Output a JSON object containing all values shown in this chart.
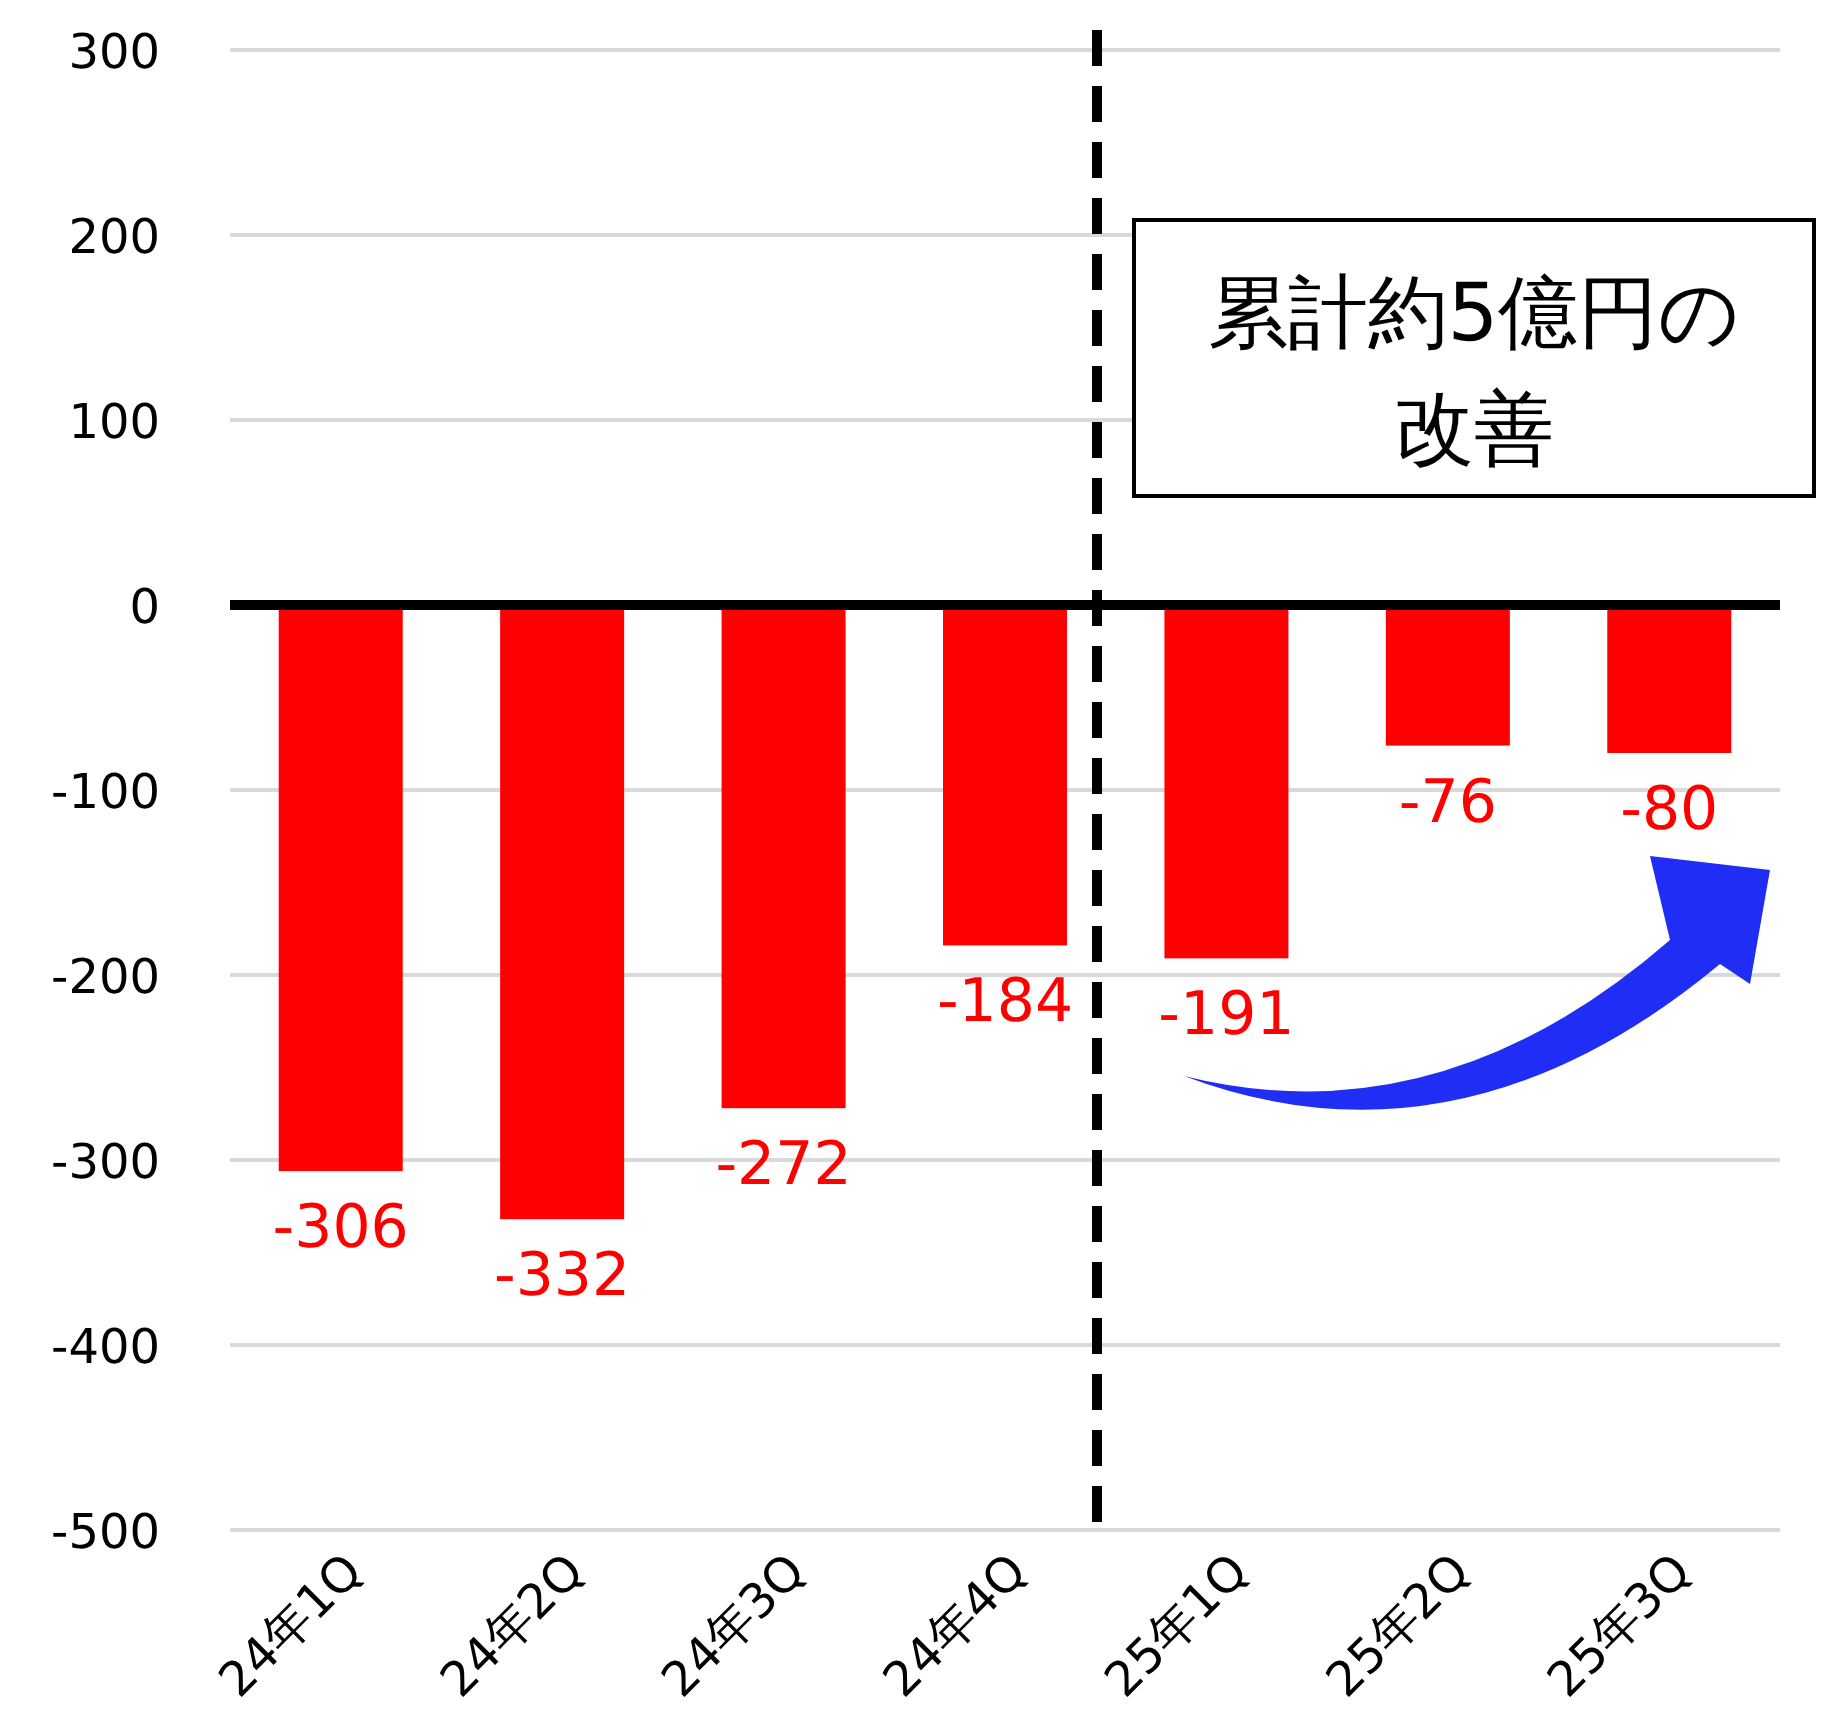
{
  "chart_data": {
    "type": "bar",
    "categories": [
      "24年1Q",
      "24年2Q",
      "24年3Q",
      "24年4Q",
      "25年1Q",
      "25年2Q",
      "25年3Q"
    ],
    "values": [
      -306,
      -332,
      -272,
      -184,
      -191,
      -76,
      -80
    ],
    "color": "#ff0000",
    "ylim": [
      -500,
      300
    ],
    "yticks": [
      -500,
      -400,
      -300,
      -200,
      -100,
      0,
      100,
      200,
      300
    ],
    "grid": "y",
    "data_labels": true,
    "annotations": [
      "累計約5億円の改善"
    ]
  }
}
